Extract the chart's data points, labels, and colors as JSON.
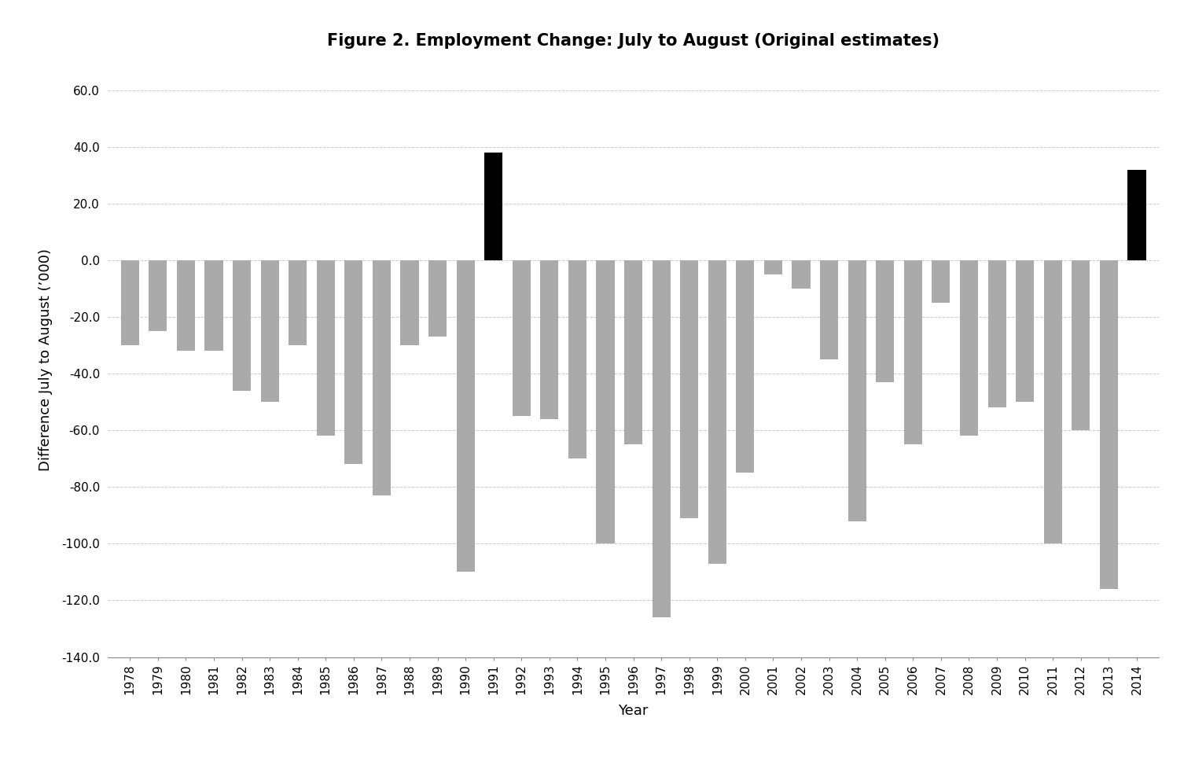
{
  "title": "Figure 2. Employment Change: July to August (Original estimates)",
  "xlabel": "Year",
  "ylabel": "Difference July to August (’000)",
  "years": [
    1978,
    1979,
    1980,
    1981,
    1982,
    1983,
    1984,
    1985,
    1986,
    1987,
    1988,
    1989,
    1990,
    1991,
    1992,
    1993,
    1994,
    1995,
    1996,
    1997,
    1998,
    1999,
    2000,
    2001,
    2002,
    2003,
    2004,
    2005,
    2006,
    2007,
    2008,
    2009,
    2010,
    2011,
    2012,
    2013,
    2014
  ],
  "values": [
    -30,
    -25,
    -32,
    -32,
    -46,
    -50,
    -30,
    -62,
    -72,
    -83,
    -30,
    -27,
    -110,
    38,
    -55,
    -56,
    -70,
    -100,
    -65,
    -126,
    -91,
    -107,
    -75,
    -5,
    -10,
    -35,
    -92,
    -43,
    -65,
    -15,
    -62,
    -52,
    -50,
    -100,
    -60,
    -116,
    32
  ],
  "bar_colors": [
    "#aaaaaa",
    "#aaaaaa",
    "#aaaaaa",
    "#aaaaaa",
    "#aaaaaa",
    "#aaaaaa",
    "#aaaaaa",
    "#aaaaaa",
    "#aaaaaa",
    "#aaaaaa",
    "#aaaaaa",
    "#aaaaaa",
    "#aaaaaa",
    "#000000",
    "#aaaaaa",
    "#aaaaaa",
    "#aaaaaa",
    "#aaaaaa",
    "#aaaaaa",
    "#aaaaaa",
    "#aaaaaa",
    "#aaaaaa",
    "#aaaaaa",
    "#aaaaaa",
    "#aaaaaa",
    "#aaaaaa",
    "#aaaaaa",
    "#aaaaaa",
    "#aaaaaa",
    "#aaaaaa",
    "#aaaaaa",
    "#aaaaaa",
    "#aaaaaa",
    "#aaaaaa",
    "#aaaaaa",
    "#aaaaaa",
    "#000000"
  ],
  "ylim": [
    -140,
    70
  ],
  "yticks": [
    -140,
    -120,
    -100,
    -80,
    -60,
    -40,
    -20,
    0,
    20,
    40,
    60
  ],
  "ytick_labels": [
    "-140.0",
    "-120.0",
    "-100.0",
    "-80.0",
    "-60.0",
    "-40.0",
    "-20.0",
    "0.0",
    "20.0",
    "40.0",
    "60.0"
  ],
  "background_color": "#ffffff",
  "title_fontsize": 15,
  "axis_label_fontsize": 13,
  "tick_fontsize": 11,
  "bar_width": 0.65,
  "grid_color": "#cccccc",
  "grid_linestyle": "--",
  "grid_linewidth": 0.7
}
